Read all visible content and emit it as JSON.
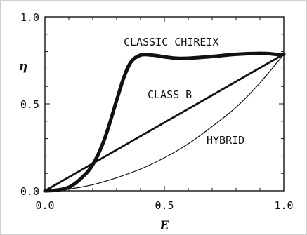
{
  "chart_data": {
    "type": "line",
    "xlabel": "E",
    "ylabel": "η",
    "xlim": [
      0.0,
      1.0
    ],
    "ylim": [
      0.0,
      1.0
    ],
    "xticks": [
      "0.0",
      "0.5",
      "1.0"
    ],
    "yticks": [
      "0.0",
      "0.5",
      "1.0"
    ],
    "grid": false,
    "series": [
      {
        "name": "CLASSIC CHIREIX",
        "stroke": "heavy",
        "x": [
          0.0,
          0.05,
          0.1,
          0.15,
          0.2,
          0.25,
          0.3,
          0.33,
          0.36,
          0.4,
          0.45,
          0.5,
          0.55,
          0.6,
          0.7,
          0.8,
          0.9,
          0.95,
          0.98,
          1.0
        ],
        "y": [
          0.0,
          0.004,
          0.02,
          0.07,
          0.15,
          0.3,
          0.52,
          0.65,
          0.74,
          0.78,
          0.78,
          0.77,
          0.762,
          0.762,
          0.772,
          0.785,
          0.79,
          0.787,
          0.782,
          0.785
        ]
      },
      {
        "name": "CLASS B",
        "stroke": "medium",
        "x": [
          0.0,
          1.0
        ],
        "y": [
          0.0,
          0.785
        ]
      },
      {
        "name": "HYBRID",
        "stroke": "thin",
        "x": [
          0.0,
          0.1,
          0.2,
          0.3,
          0.4,
          0.5,
          0.6,
          0.7,
          0.8,
          0.9,
          1.0
        ],
        "y": [
          0.0,
          0.01,
          0.035,
          0.075,
          0.125,
          0.19,
          0.27,
          0.37,
          0.48,
          0.62,
          0.785
        ]
      }
    ],
    "labels": {
      "classic": "CLASSIC CHIREIX",
      "classb": "CLASS B",
      "hybrid": "HYBRID"
    }
  }
}
